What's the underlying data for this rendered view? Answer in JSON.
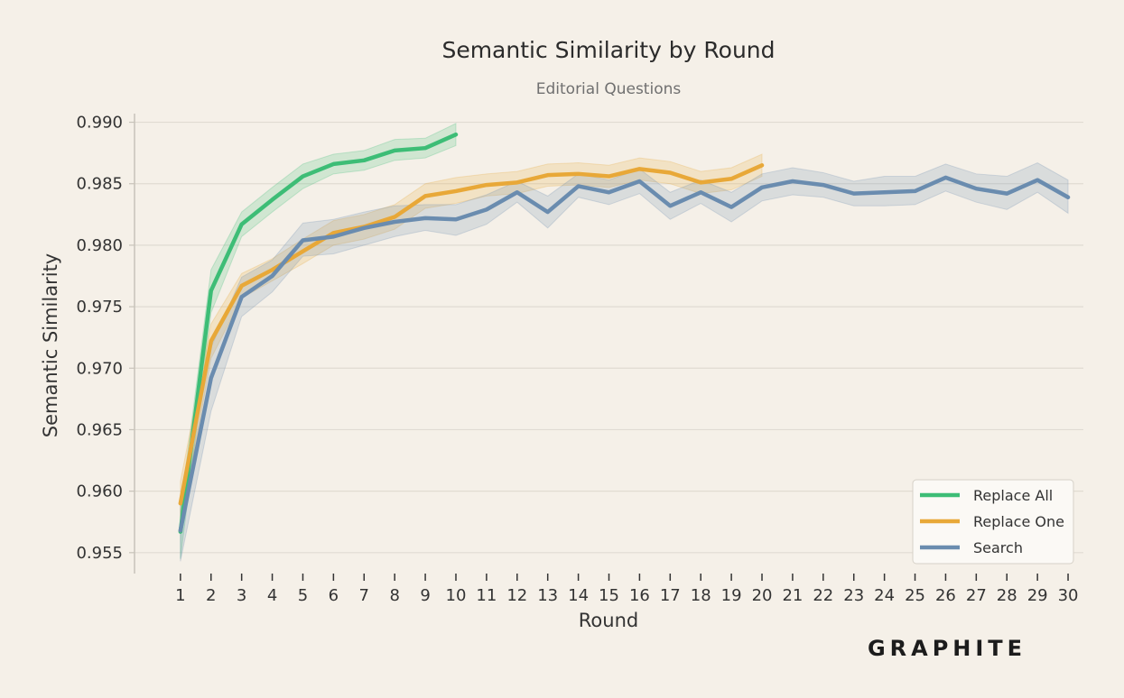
{
  "chart_data": {
    "type": "line",
    "title": "Semantic Similarity by Round",
    "subtitle": "Editorial Questions",
    "xlabel": "Round",
    "ylabel": "Semantic Similarity",
    "x_ticks": [
      1,
      2,
      3,
      4,
      5,
      6,
      7,
      8,
      9,
      10,
      11,
      12,
      13,
      14,
      15,
      16,
      17,
      18,
      19,
      20,
      21,
      22,
      23,
      24,
      25,
      26,
      27,
      28,
      29,
      30
    ],
    "y_ticks": [
      "0.955",
      "0.960",
      "0.965",
      "0.970",
      "0.975",
      "0.980",
      "0.985",
      "0.990"
    ],
    "ylim": [
      0.9533,
      0.9907
    ],
    "xlim": [
      -0.5,
      30.5
    ],
    "grid": "horizontal",
    "legend_placement": "bottom-right",
    "series": [
      {
        "name": "Replace All",
        "color": "#3dbd76",
        "x": [
          1,
          2,
          3,
          4,
          5,
          6,
          7,
          8,
          9,
          10
        ],
        "values": [
          0.9567,
          0.9763,
          0.9817,
          0.9837,
          0.9856,
          0.9866,
          0.9869,
          0.9877,
          0.9879,
          0.989
        ],
        "band_lower": [
          0.9545,
          0.9745,
          0.9807,
          0.9827,
          0.9846,
          0.9858,
          0.9861,
          0.9869,
          0.9871,
          0.9881
        ],
        "band_upper": [
          0.9585,
          0.978,
          0.9827,
          0.9847,
          0.9866,
          0.9874,
          0.9877,
          0.9886,
          0.9887,
          0.9899
        ]
      },
      {
        "name": "Replace One",
        "color": "#e8a838",
        "x": [
          1,
          2,
          3,
          4,
          5,
          6,
          7,
          8,
          9,
          10,
          11,
          12,
          13,
          14,
          15,
          16,
          17,
          18,
          19,
          20
        ],
        "values": [
          0.959,
          0.9722,
          0.9767,
          0.978,
          0.9795,
          0.981,
          0.9815,
          0.9823,
          0.984,
          0.9844,
          0.9849,
          0.9851,
          0.9857,
          0.9858,
          0.9856,
          0.9862,
          0.9859,
          0.9851,
          0.9854,
          0.9865
        ],
        "band_lower": [
          0.957,
          0.9708,
          0.9757,
          0.9771,
          0.9785,
          0.98,
          0.9805,
          0.9813,
          0.983,
          0.9834,
          0.984,
          0.9842,
          0.9848,
          0.9849,
          0.9847,
          0.9853,
          0.985,
          0.9842,
          0.9845,
          0.9856
        ],
        "band_upper": [
          0.9608,
          0.9736,
          0.9777,
          0.9789,
          0.9805,
          0.982,
          0.9825,
          0.9833,
          0.985,
          0.9855,
          0.9858,
          0.986,
          0.9866,
          0.9867,
          0.9865,
          0.9871,
          0.9868,
          0.986,
          0.9863,
          0.9874
        ]
      },
      {
        "name": "Search",
        "color": "#6a8caf",
        "x": [
          1,
          2,
          3,
          4,
          5,
          6,
          7,
          8,
          9,
          10,
          11,
          12,
          13,
          14,
          15,
          16,
          17,
          18,
          19,
          20,
          21,
          22,
          23,
          24,
          25,
          26,
          27,
          28,
          29,
          30
        ],
        "values": [
          0.9568,
          0.9692,
          0.9758,
          0.9775,
          0.9804,
          0.9807,
          0.9814,
          0.9819,
          0.9822,
          0.9821,
          0.9829,
          0.9843,
          0.9827,
          0.9848,
          0.9843,
          0.9852,
          0.9832,
          0.9843,
          0.9831,
          0.9847,
          0.9852,
          0.9849,
          0.9842,
          0.9843,
          0.9844,
          0.9855,
          0.9846,
          0.9842,
          0.9853,
          0.9839
        ],
        "band_lower": [
          0.9543,
          0.9665,
          0.9742,
          0.9762,
          0.9791,
          0.9793,
          0.98,
          0.9807,
          0.9812,
          0.9808,
          0.9817,
          0.9835,
          0.9814,
          0.9839,
          0.9833,
          0.9842,
          0.9821,
          0.9834,
          0.9819,
          0.9836,
          0.9841,
          0.9839,
          0.9832,
          0.9832,
          0.9833,
          0.9844,
          0.9835,
          0.9829,
          0.9843,
          0.9826
        ],
        "band_upper": [
          0.959,
          0.9717,
          0.9774,
          0.9788,
          0.9818,
          0.9821,
          0.9827,
          0.9832,
          0.9833,
          0.9833,
          0.9841,
          0.9852,
          0.984,
          0.9858,
          0.9853,
          0.9862,
          0.9843,
          0.9853,
          0.9843,
          0.9858,
          0.9863,
          0.9859,
          0.9852,
          0.9856,
          0.9856,
          0.9866,
          0.9858,
          0.9856,
          0.9867,
          0.9853
        ]
      }
    ]
  },
  "branding": {
    "logo_text": "GRAPHITE"
  },
  "colors": {
    "background": "#f5f0e8",
    "grid": "#e0dbd2",
    "axis": "#c8c3ba"
  }
}
